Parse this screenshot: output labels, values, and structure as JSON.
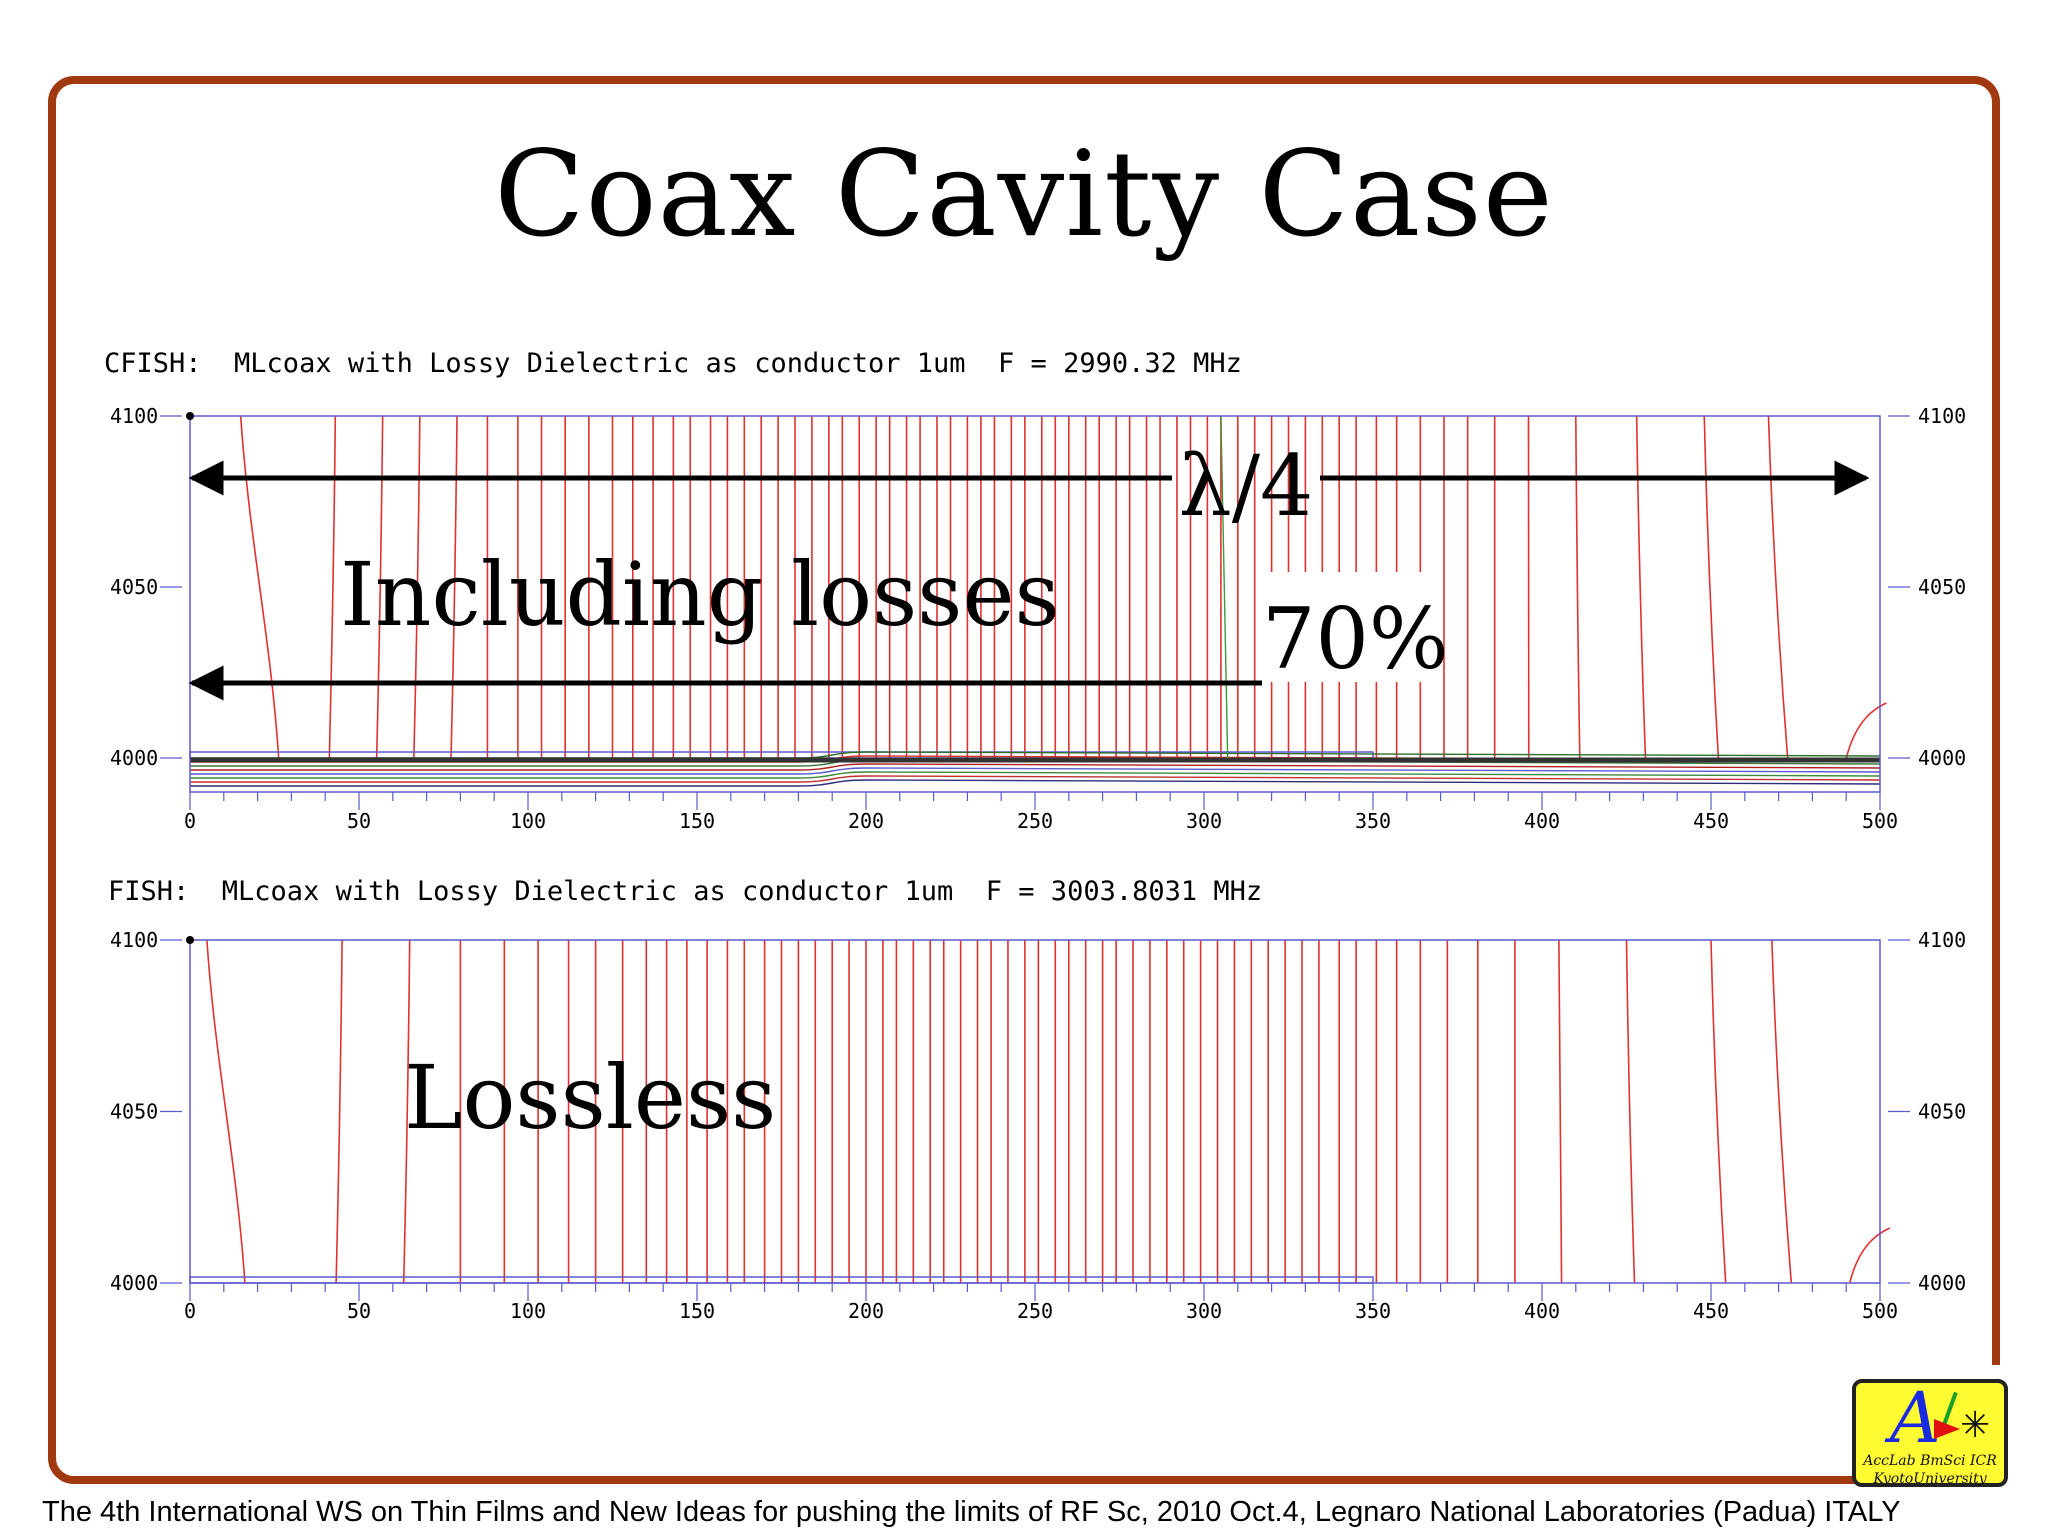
{
  "slide": {
    "title": "Coax Cavity Case",
    "footer": "The 4th International WS on Thin Films  and New Ideas for pushing the limits of RF Sc, 2010 Oct.4, Legnaro National Laboratories (Padua) ITALY",
    "logo": {
      "letter": "A",
      "line1": "AccLab  BmSci  ICR",
      "line2": "KyotoUniversity"
    },
    "colors": {
      "frame": "#a0390f",
      "field_lines": "#e03030",
      "axes": "#5a5ad0",
      "logo_bg": "#fffb33"
    }
  },
  "annotations": {
    "lambda": "λ/4",
    "percent": "70%",
    "including": "Including losses",
    "lossless": "Lossless"
  },
  "chart_data": [
    {
      "type": "line",
      "title": "CFISH:  MLcoax with Lossy Dielectric as conductor 1um  F = 2990.32 MHz",
      "xlabel": "",
      "ylabel": "",
      "xlim": [
        0,
        500
      ],
      "ylim": [
        3990,
        4100
      ],
      "x_ticks": [
        "0",
        "50",
        "100",
        "150",
        "200",
        "250",
        "300",
        "350",
        "400",
        "450",
        "500"
      ],
      "y_ticks": [
        "4000",
        "4050",
        "4100"
      ],
      "conductor": {
        "x_end": 350,
        "y": 4001
      },
      "field_line_x": [
        15,
        43,
        57,
        68,
        79,
        88,
        97,
        104,
        111,
        118,
        125,
        131,
        137,
        143,
        148,
        154,
        159,
        164,
        169,
        174,
        179,
        184,
        189,
        193,
        198,
        203,
        207,
        212,
        216,
        221,
        225,
        230,
        234,
        238,
        243,
        247,
        252,
        256,
        260,
        265,
        269,
        274,
        278,
        283,
        287,
        292,
        296,
        301,
        305,
        310,
        315,
        320,
        325,
        330,
        335,
        340,
        345,
        351,
        357,
        364,
        371,
        378,
        386,
        396,
        410,
        428,
        448,
        467,
        493
      ]
    },
    {
      "type": "line",
      "title": "FISH:  MLcoax with Lossy Dielectric as conductor 1um  F = 3003.8031 MHz",
      "xlabel": "",
      "ylabel": "",
      "xlim": [
        0,
        500
      ],
      "ylim": [
        4000,
        4100
      ],
      "x_ticks": [
        "0",
        "50",
        "100",
        "150",
        "200",
        "250",
        "300",
        "350",
        "400",
        "450",
        "500"
      ],
      "y_ticks": [
        "4000",
        "4050",
        "4100"
      ],
      "conductor": {
        "x_end": 350,
        "y": 4001
      },
      "field_line_x": [
        5,
        45,
        65,
        80,
        93,
        103,
        112,
        120,
        128,
        135,
        141,
        147,
        153,
        159,
        164,
        170,
        175,
        180,
        185,
        190,
        195,
        200,
        205,
        209,
        214,
        219,
        223,
        228,
        233,
        237,
        242,
        247,
        251,
        256,
        260,
        265,
        270,
        274,
        279,
        284,
        289,
        294,
        299,
        304,
        309,
        314,
        319,
        324,
        329,
        334,
        340,
        345,
        351,
        357,
        364,
        372,
        381,
        392,
        405,
        425,
        450,
        468,
        494
      ]
    }
  ]
}
